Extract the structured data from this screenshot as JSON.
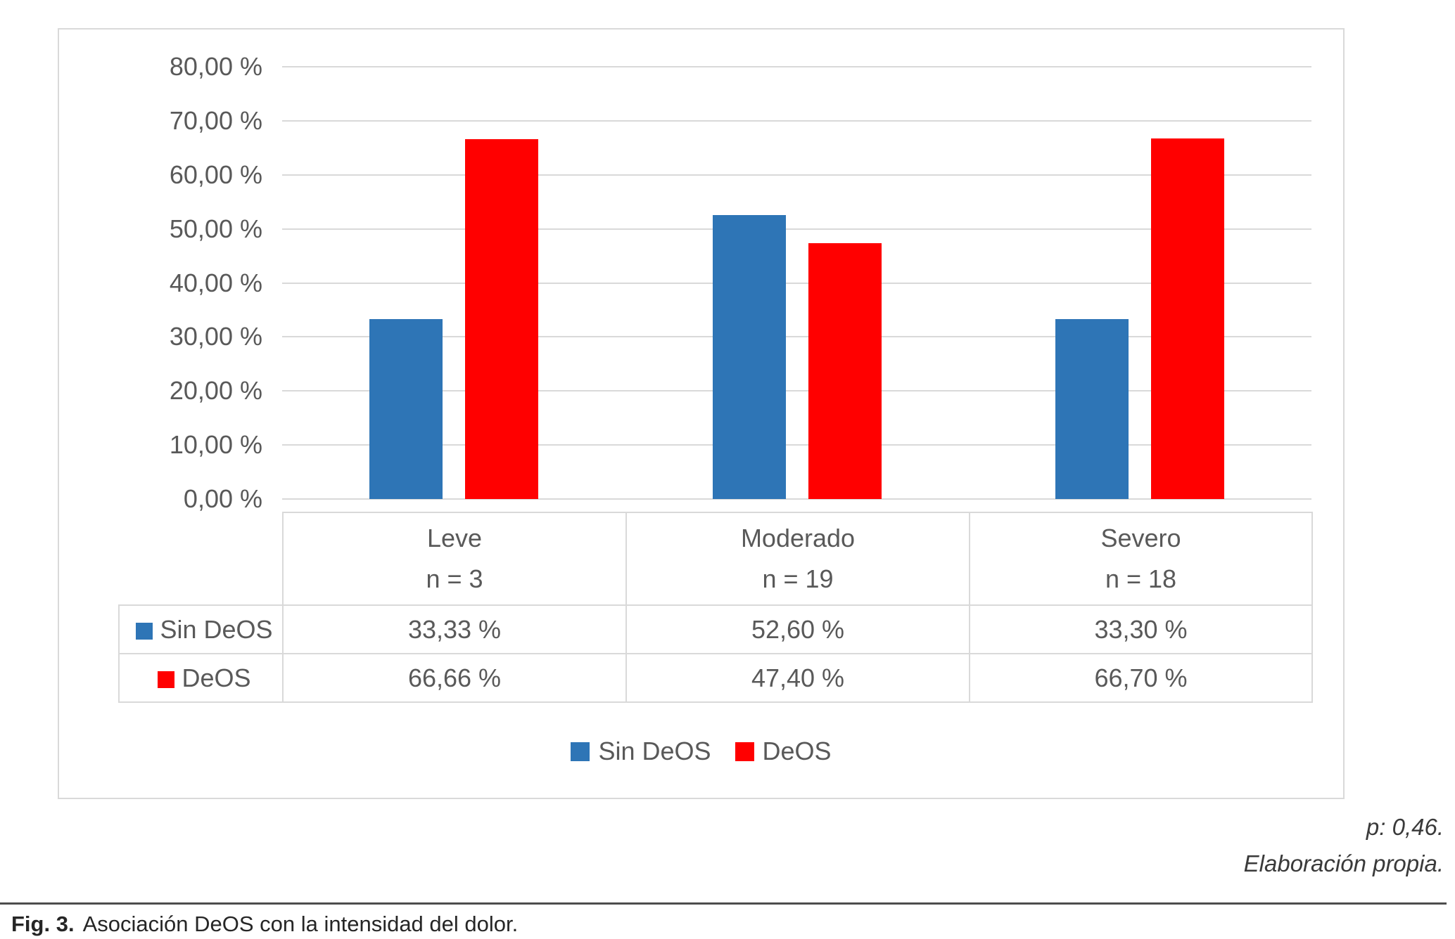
{
  "chart_data": {
    "type": "bar",
    "title": "",
    "xlabel": "",
    "ylabel": "",
    "categories": [
      "Leve",
      "Moderado",
      "Severo"
    ],
    "category_sublabels": [
      "n = 3",
      "n = 19",
      "n = 18"
    ],
    "series": [
      {
        "name": "Sin DeOS",
        "color": "#2E75B6",
        "values": [
          33.33,
          52.6,
          33.3
        ],
        "labels": [
          "33,33 %",
          "52,60 %",
          "33,30 %"
        ]
      },
      {
        "name": "DeOS",
        "color": "#FF0000",
        "values": [
          66.66,
          47.4,
          66.7
        ],
        "labels": [
          "66,66 %",
          "47,40 %",
          "66,70 %"
        ]
      }
    ],
    "ylim": [
      0,
      80
    ],
    "ytick_step": 10,
    "ytick_labels": [
      "0,00 %",
      "10,00 %",
      "20,00 %",
      "30,00 %",
      "40,00 %",
      "50,00 %",
      "60,00 %",
      "70,00 %",
      "80,00 %"
    ],
    "grid": true,
    "legend_position": "bottom"
  },
  "annotations": {
    "p_value": "p: 0,46.",
    "source": "Elaboración propia."
  },
  "caption": {
    "label": "Fig. 3.",
    "text": "Asociación DeOS con la intensidad del dolor."
  }
}
